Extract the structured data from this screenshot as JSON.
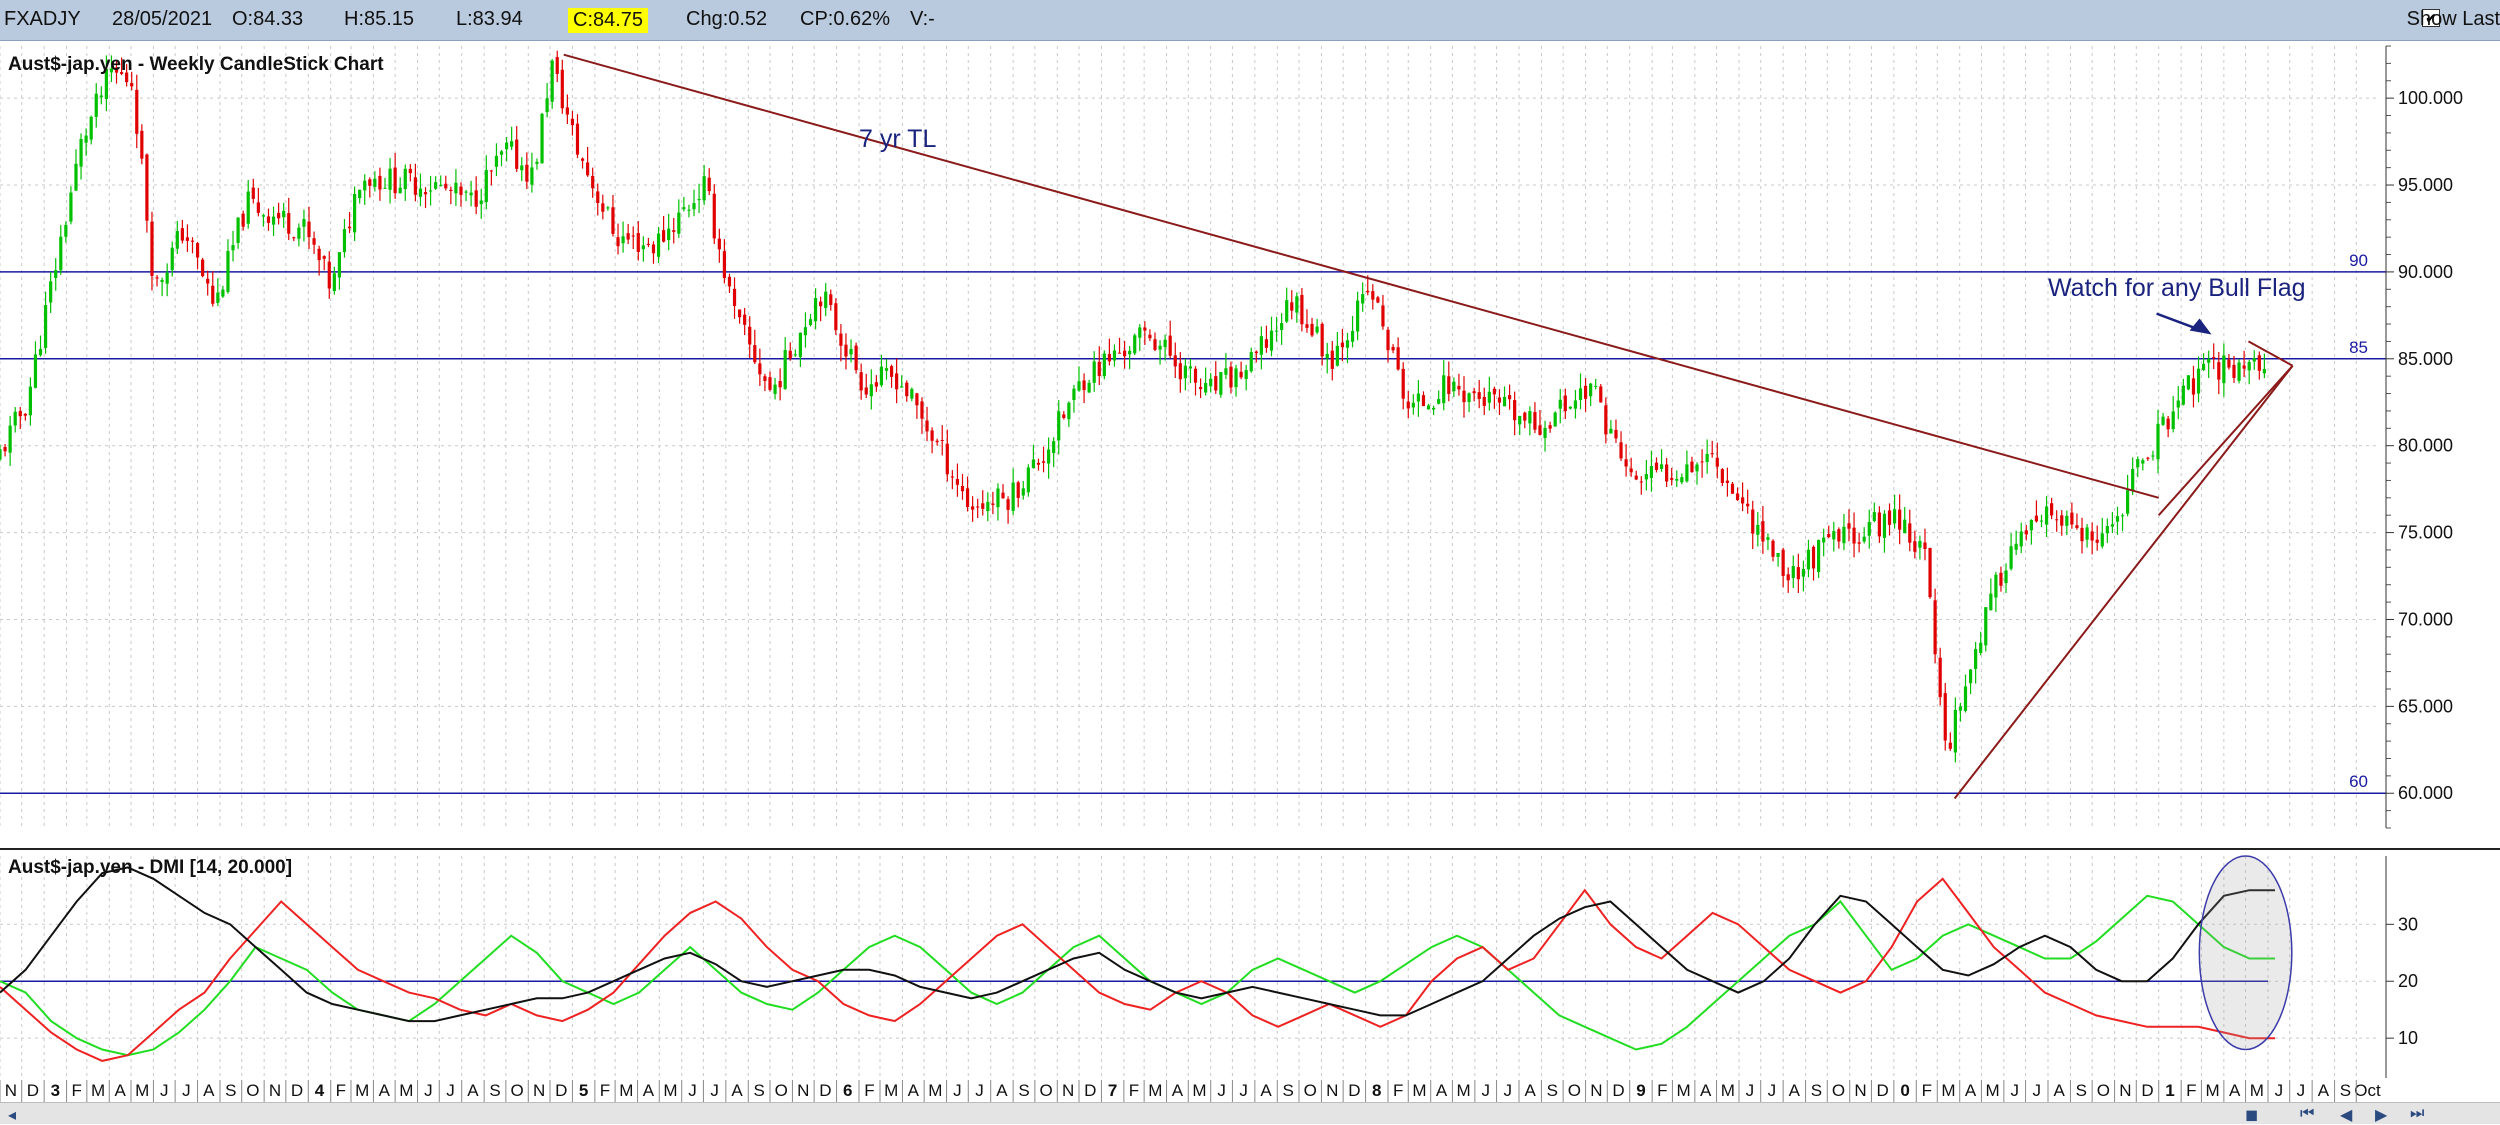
{
  "toolbar": {
    "symbol": "FXADJY",
    "date": "28/05/2021",
    "open": "O:84.33",
    "high": "H:85.15",
    "low": "L:83.94",
    "close": "C:84.75",
    "change": "Chg:0.52",
    "change_pct": "CP:0.62%",
    "volume": "V:-",
    "show_last_checked": true,
    "show_last_label": "Show Last"
  },
  "colors": {
    "bull": "#00c000",
    "bear": "#e00000",
    "hline": "#1a1aa0",
    "trendline": "#8b1a1a",
    "annotation": "#1a237e",
    "di_plus": "#22dd22",
    "di_minus": "#ee2222",
    "adx": "#111111"
  },
  "chart_data": [
    {
      "type": "candlestick",
      "title": "Aust$-jap.yen - Weekly CandleStick Chart",
      "x_range": [
        "2012-11-01",
        "2021-10-31"
      ],
      "ylim": [
        58,
        103
      ],
      "y_ticks": [
        60.0,
        65.0,
        70.0,
        75.0,
        80.0,
        85.0,
        90.0,
        95.0,
        100.0
      ],
      "grid": true,
      "price_path": [
        [
          "2012-11-01",
          79.0
        ],
        [
          "2012-12-15",
          82.5
        ],
        [
          "2013-02-01",
          92.0
        ],
        [
          "2013-03-01",
          97.5
        ],
        [
          "2013-04-10",
          101.5
        ],
        [
          "2013-05-10",
          101.0
        ],
        [
          "2013-06-10",
          89.0
        ],
        [
          "2013-07-20",
          92.5
        ],
        [
          "2013-09-01",
          88.0
        ],
        [
          "2013-10-15",
          94.0
        ],
        [
          "2014-01-01",
          92.5
        ],
        [
          "2014-02-10",
          89.0
        ],
        [
          "2014-03-20",
          95.5
        ],
        [
          "2014-07-01",
          95.0
        ],
        [
          "2014-08-20",
          94.0
        ],
        [
          "2014-10-10",
          97.0
        ],
        [
          "2014-11-15",
          95.5
        ],
        [
          "2014-12-10",
          102.0
        ],
        [
          "2015-01-15",
          97.0
        ],
        [
          "2015-03-10",
          92.0
        ],
        [
          "2015-05-01",
          91.5
        ],
        [
          "2015-07-10",
          95.0
        ],
        [
          "2015-08-20",
          87.5
        ],
        [
          "2015-10-10",
          83.0
        ],
        [
          "2015-12-15",
          89.0
        ],
        [
          "2016-02-15",
          83.5
        ],
        [
          "2016-04-01",
          84.0
        ],
        [
          "2016-06-10",
          79.0
        ],
        [
          "2016-07-10",
          76.5
        ],
        [
          "2016-09-01",
          77.0
        ],
        [
          "2016-10-20",
          79.5
        ],
        [
          "2016-12-15",
          84.0
        ],
        [
          "2017-03-15",
          86.5
        ],
        [
          "2017-06-01",
          83.0
        ],
        [
          "2017-08-01",
          84.5
        ],
        [
          "2017-10-01",
          88.5
        ],
        [
          "2017-11-20",
          85.0
        ],
        [
          "2018-01-15",
          89.0
        ],
        [
          "2018-03-10",
          82.0
        ],
        [
          "2018-05-01",
          83.5
        ],
        [
          "2018-07-01",
          82.5
        ],
        [
          "2018-09-01",
          81.0
        ],
        [
          "2018-11-15",
          83.5
        ],
        [
          "2019-01-10",
          78.0
        ],
        [
          "2019-03-01",
          78.5
        ],
        [
          "2019-05-01",
          79.5
        ],
        [
          "2019-08-15",
          72.5
        ],
        [
          "2019-10-15",
          74.5
        ],
        [
          "2020-01-15",
          76.0
        ],
        [
          "2020-02-20",
          73.5
        ],
        [
          "2020-03-20",
          62.5
        ],
        [
          "2020-05-01",
          68.5
        ],
        [
          "2020-06-15",
          74.0
        ],
        [
          "2020-08-15",
          76.0
        ],
        [
          "2020-10-20",
          74.0
        ],
        [
          "2020-12-20",
          79.5
        ],
        [
          "2021-02-20",
          83.5
        ],
        [
          "2021-03-25",
          84.5
        ],
        [
          "2021-05-28",
          84.75
        ]
      ],
      "reference_lines": [
        {
          "y": 90,
          "label": "90"
        },
        {
          "y": 85,
          "label": "85"
        },
        {
          "y": 60,
          "label": "60"
        }
      ],
      "trendlines": [
        {
          "from": [
            "2014-12-20",
            102.5
          ],
          "to": [
            "2021-01-01",
            77.0
          ]
        },
        {
          "from": [
            "2020-03-25",
            59.7
          ],
          "to": [
            "2021-07-05",
            84.6
          ]
        },
        {
          "from": [
            "2021-01-01",
            76.0
          ],
          "to": [
            "2021-07-05",
            84.6
          ]
        },
        {
          "from": [
            "2021-05-05",
            86.0
          ],
          "to": [
            "2021-07-05",
            84.6
          ]
        }
      ],
      "annotations": [
        {
          "text": "7 yr TL",
          "at": [
            "2016-02-01",
            97.2
          ]
        },
        {
          "text": "Watch for any Bull Flag",
          "at": [
            "2020-08-01",
            88.6
          ]
        }
      ],
      "x_month_labels": [
        "N",
        "D",
        "3",
        "F",
        "M",
        "A",
        "M",
        "J",
        "J",
        "A",
        "S",
        "O",
        "N",
        "D",
        "4",
        "F",
        "M",
        "A",
        "M",
        "J",
        "J",
        "A",
        "S",
        "O",
        "N",
        "D",
        "5",
        "F",
        "M",
        "A",
        "M",
        "J",
        "J",
        "A",
        "S",
        "O",
        "N",
        "D",
        "6",
        "F",
        "M",
        "A",
        "M",
        "J",
        "J",
        "A",
        "S",
        "O",
        "N",
        "D",
        "7",
        "F",
        "M",
        "A",
        "M",
        "J",
        "J",
        "A",
        "S",
        "O",
        "N",
        "D",
        "8",
        "F",
        "M",
        "A",
        "M",
        "J",
        "J",
        "A",
        "S",
        "O",
        "N",
        "D",
        "9",
        "F",
        "M",
        "A",
        "M",
        "J",
        "J",
        "A",
        "S",
        "O",
        "N",
        "D",
        "0",
        "F",
        "M",
        "A",
        "M",
        "J",
        "J",
        "A",
        "S",
        "O",
        "N",
        "D",
        "1",
        "F",
        "M",
        "A",
        "M",
        "J",
        "J",
        "A",
        "S",
        "Oct"
      ]
    },
    {
      "type": "line",
      "title": "Aust$-jap.yen - DMI [14, 20.000]",
      "ylim": [
        3,
        42
      ],
      "y_ticks": [
        10,
        20,
        30
      ],
      "reference_lines": [
        {
          "y": 20
        }
      ],
      "series": [
        {
          "key": "di_plus",
          "values": [
            20,
            18,
            13,
            10,
            8,
            7,
            8,
            11,
            15,
            20,
            26,
            24,
            22,
            18,
            15,
            14,
            13,
            16,
            20,
            24,
            28,
            25,
            20,
            18,
            16,
            18,
            22,
            26,
            22,
            18,
            16,
            15,
            18,
            22,
            26,
            28,
            26,
            22,
            18,
            16,
            18,
            22,
            26,
            28,
            24,
            20,
            18,
            16,
            18,
            22,
            24,
            22,
            20,
            18,
            20,
            23,
            26,
            28,
            26,
            22,
            18,
            14,
            12,
            10,
            8,
            9,
            12,
            16,
            20,
            24,
            28,
            30,
            34,
            28,
            22,
            24,
            28,
            30,
            28,
            26,
            24,
            24,
            27,
            31,
            35,
            34,
            30,
            26,
            24,
            24
          ]
        },
        {
          "key": "di_minus",
          "values": [
            19,
            15,
            11,
            8,
            6,
            7,
            11,
            15,
            18,
            24,
            29,
            34,
            30,
            26,
            22,
            20,
            18,
            17,
            15,
            14,
            16,
            14,
            13,
            15,
            18,
            23,
            28,
            32,
            34,
            31,
            26,
            22,
            20,
            16,
            14,
            13,
            16,
            20,
            24,
            28,
            30,
            26,
            22,
            18,
            16,
            15,
            18,
            20,
            18,
            14,
            12,
            14,
            16,
            14,
            12,
            14,
            20,
            24,
            26,
            22,
            24,
            30,
            36,
            30,
            26,
            24,
            28,
            32,
            30,
            26,
            22,
            20,
            18,
            20,
            26,
            34,
            38,
            32,
            26,
            22,
            18,
            16,
            14,
            13,
            12,
            12,
            12,
            11,
            10,
            10
          ]
        },
        {
          "key": "adx",
          "values": [
            18,
            22,
            28,
            34,
            39,
            40,
            38,
            35,
            32,
            30,
            26,
            22,
            18,
            16,
            15,
            14,
            13,
            13,
            14,
            15,
            16,
            17,
            17,
            18,
            20,
            22,
            24,
            25,
            23,
            20,
            19,
            20,
            21,
            22,
            22,
            21,
            19,
            18,
            17,
            18,
            20,
            22,
            24,
            25,
            22,
            20,
            18,
            17,
            18,
            19,
            18,
            17,
            16,
            15,
            14,
            14,
            16,
            18,
            20,
            24,
            28,
            31,
            33,
            34,
            30,
            26,
            22,
            20,
            18,
            20,
            24,
            30,
            35,
            34,
            30,
            26,
            22,
            21,
            23,
            26,
            28,
            26,
            22,
            20,
            20,
            24,
            30,
            35,
            36,
            36
          ]
        }
      ],
      "highlight_circle": {
        "center": [
          "2021-05-01",
          25
        ],
        "rx_months": 2.1,
        "ry": 17
      }
    }
  ]
}
